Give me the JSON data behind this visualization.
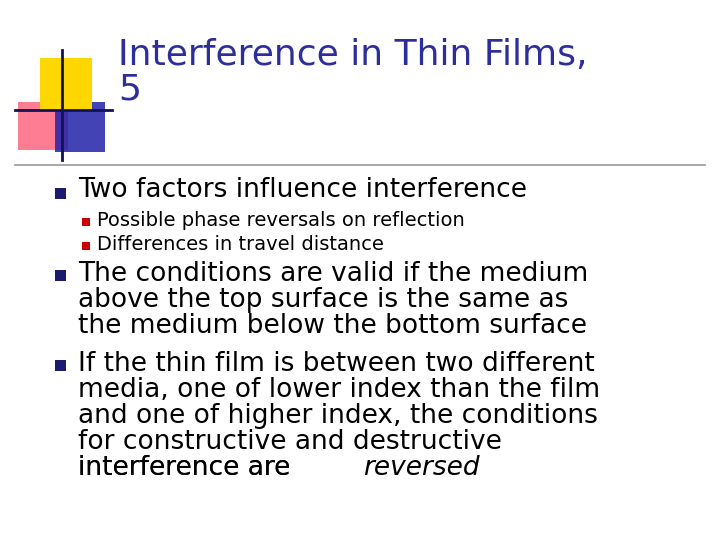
{
  "title_line1": "Interference in Thin Films,",
  "title_line2": "5",
  "title_color": "#2E2E9A",
  "title_fontsize": 26,
  "bg_color": "#FFFFFF",
  "bullet_color": "#1a1a6e",
  "sub_bullet_color": "#CC0000",
  "text_color": "#000000",
  "bullet1": "Two factors influence interference",
  "bullet1_fontsize": 19,
  "sub_bullet1": "Possible phase reversals on reflection",
  "sub_bullet2": "Differences in travel distance",
  "sub_fontsize": 14,
  "bullet2_lines": [
    "The conditions are valid if the medium",
    "above the top surface is the same as",
    "the medium below the bottom surface"
  ],
  "bullet2_fontsize": 19,
  "bullet3_lines": [
    "If the thin film is between two different",
    "media, one of lower index than the film",
    "and one of higher index, the conditions",
    "for constructive and destructive",
    "interference are "
  ],
  "bullet3_italic": "reversed",
  "bullet3_fontsize": 19,
  "divider_color": "#999999",
  "logo_yellow": "#FFD700",
  "logo_red": "#FF6680",
  "logo_blue": "#2222AA"
}
